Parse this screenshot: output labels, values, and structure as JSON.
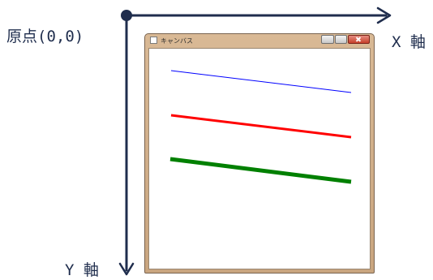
{
  "labels": {
    "origin": "原点(0,0)",
    "x_axis": "X 軸",
    "y_axis": "Y 軸"
  },
  "window": {
    "title": "キャンバス"
  },
  "canvas_lines": [
    {
      "name": "blue-line",
      "color": "#0000ff"
    },
    {
      "name": "red-line",
      "color": "#ff0000"
    },
    {
      "name": "green-line",
      "color": "#008000"
    }
  ],
  "colors": {
    "axis": "#1f2d4d"
  }
}
